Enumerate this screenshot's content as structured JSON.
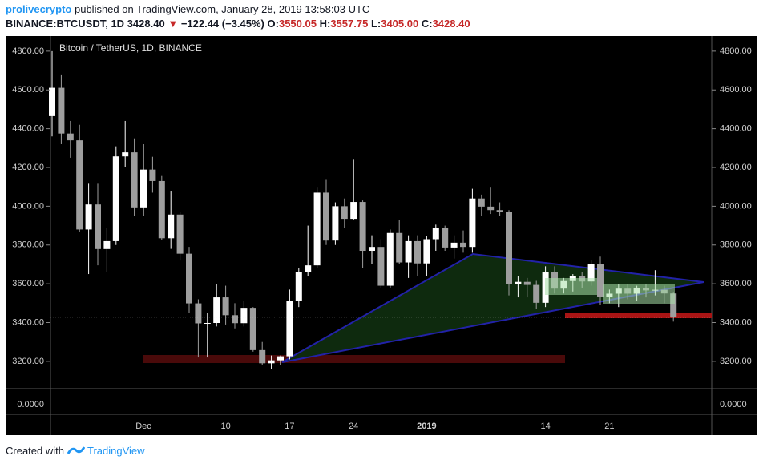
{
  "chart_data": {
    "type": "candlestick",
    "header": {
      "author": "prolivecrypto",
      "published": "published on TradingView.com, January 28, 2019 13:58:03 UTC",
      "symbol": "BINANCE:BTCUSDT, 1D",
      "last": "3428.40",
      "arrow": "▼",
      "change": "−122.44 (−3.45%)",
      "o_label": "O:",
      "o": "3550.05",
      "h_label": "H:",
      "h": "3557.75",
      "l_label": "L:",
      "l": "3405.00",
      "c_label": "C:",
      "c": "3428.40"
    },
    "title": "Bitcoin / TetherUS, 1D, BINANCE",
    "footer": "Created with",
    "brand": "TradingView",
    "volume_axis_label": "0.0000",
    "categories": [
      null,
      null,
      null,
      null,
      null,
      null,
      null,
      null,
      null,
      null,
      "Dec",
      null,
      null,
      null,
      null,
      null,
      null,
      null,
      null,
      "10",
      null,
      null,
      null,
      null,
      null,
      null,
      "17",
      null,
      null,
      null,
      null,
      null,
      null,
      "24",
      null,
      null,
      null,
      null,
      null,
      null,
      null,
      "2019",
      null,
      null,
      null,
      null,
      null,
      null,
      null,
      null,
      null,
      null,
      null,
      null,
      "14",
      null,
      null,
      null,
      null,
      null,
      null,
      "21",
      null,
      null,
      null,
      null,
      null,
      null,
      null
    ],
    "open": [
      4465,
      4611,
      4375,
      4340,
      3880,
      4009,
      3779,
      3820,
      4257,
      4278,
      3994,
      4189,
      4130,
      3835,
      3957,
      3755,
      3499,
      3396,
      3398,
      3530,
      3438,
      3397,
      3476,
      3258,
      3190,
      3205,
      3226,
      3510,
      3660,
      3695,
      4070,
      3823,
      4000,
      3935,
      4022,
      3770,
      3790,
      3590,
      3862,
      3710,
      3820,
      3705,
      3830,
      3890,
      3787,
      3812,
      3790,
      4040,
      3998,
      3980,
      3970,
      3600,
      3610,
      3594,
      3502,
      3661,
      3575,
      3614,
      3640,
      3612,
      3702,
      3532,
      3549,
      3575,
      3549,
      3580,
      3566,
      3569,
      3550.05
    ],
    "high": [
      4800,
      4680,
      4440,
      4420,
      4120,
      4120,
      3890,
      4309,
      4440,
      4350,
      4320,
      4255,
      4160,
      4080,
      3970,
      3790,
      3520,
      3450,
      3600,
      3590,
      3500,
      3510,
      3480,
      3300,
      3230,
      3230,
      3570,
      3680,
      3900,
      4100,
      4140,
      4020,
      4040,
      4240,
      4030,
      3850,
      3830,
      3880,
      3930,
      3850,
      3850,
      3845,
      3905,
      3900,
      3850,
      3875,
      4090,
      4060,
      4100,
      4020,
      3980,
      3640,
      3630,
      3615,
      3690,
      3690,
      3630,
      3650,
      3660,
      3720,
      3740,
      3570,
      3600,
      3600,
      3590,
      3600,
      3670,
      3590,
      3557.75
    ],
    "low": [
      4360,
      4320,
      4250,
      3865,
      3650,
      3695,
      3660,
      3800,
      4200,
      3950,
      3950,
      4070,
      3825,
      3780,
      3720,
      3450,
      3220,
      3220,
      3380,
      3390,
      3370,
      3380,
      3250,
      3180,
      3160,
      3180,
      3210,
      3480,
      3640,
      3680,
      3800,
      3800,
      3890,
      3930,
      3680,
      3700,
      3580,
      3580,
      3700,
      3630,
      3640,
      3640,
      3770,
      3770,
      3730,
      3760,
      3760,
      3950,
      3960,
      3950,
      3540,
      3530,
      3530,
      3470,
      3480,
      3550,
      3550,
      3560,
      3580,
      3590,
      3490,
      3500,
      3480,
      3520,
      3510,
      3530,
      3540,
      3500,
      3405
    ],
    "close": [
      4611,
      4375,
      4340,
      3880,
      4009,
      3779,
      3820,
      4257,
      4278,
      3994,
      4189,
      4130,
      3835,
      3957,
      3755,
      3499,
      3396,
      3398,
      3530,
      3438,
      3397,
      3476,
      3258,
      3190,
      3205,
      3226,
      3510,
      3660,
      3695,
      4070,
      3823,
      4000,
      3935,
      4022,
      3770,
      3790,
      3590,
      3862,
      3710,
      3820,
      3705,
      3830,
      3890,
      3787,
      3812,
      3790,
      4040,
      3998,
      3980,
      3970,
      3600,
      3610,
      3594,
      3502,
      3661,
      3575,
      3614,
      3640,
      3612,
      3702,
      3532,
      3549,
      3575,
      3549,
      3580,
      3566,
      3569,
      3550.05,
      3428.4
    ],
    "up_color": "#ffffff",
    "down_color": "#9e9e9e",
    "ylim": [
      3059,
      4878
    ],
    "yticks": [
      {
        "value": 3200,
        "label": "3200.00"
      },
      {
        "value": 3400,
        "label": "3400.00"
      },
      {
        "value": 3600,
        "label": "3600.00"
      },
      {
        "value": 3800,
        "label": "3800.00"
      },
      {
        "value": 4000,
        "label": "4000.00"
      },
      {
        "value": 4200,
        "label": "4200.00"
      },
      {
        "value": 4400,
        "label": "4400.00"
      },
      {
        "value": 4600,
        "label": "4600.00"
      },
      {
        "value": 4800,
        "label": "4800.00"
      }
    ]
  }
}
